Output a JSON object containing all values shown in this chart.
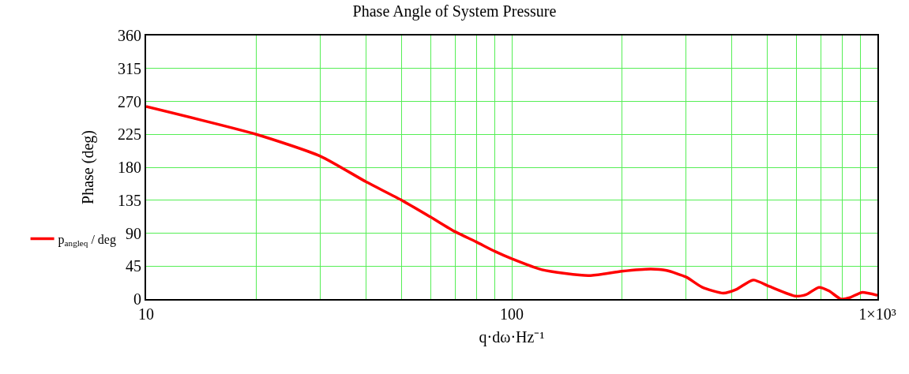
{
  "chart_data": {
    "type": "line",
    "title": "Phase Angle of System Pressure",
    "xlabel": "q·dω·Hz⁻¹",
    "ylabel": "Phase (deg)",
    "log": "x",
    "x": [
      10,
      20,
      30,
      40,
      50,
      60,
      70,
      80,
      90,
      100,
      121,
      162,
      200,
      240,
      265,
      300,
      332,
      379,
      411,
      457,
      508,
      597,
      638,
      692,
      738,
      794,
      841,
      906,
      1000
    ],
    "series": [
      {
        "name": "p$_{angle}$$_{q}$ / deg",
        "color": "#ff0000",
        "values": [
          263,
          225,
          195,
          160,
          135,
          112,
          92,
          78,
          65,
          55,
          40,
          32,
          38,
          41,
          39,
          30,
          16,
          8,
          13,
          26,
          17,
          4,
          6,
          16,
          11,
          0,
          2,
          9,
          5
        ]
      }
    ],
    "xlim": [
      10,
      1000
    ],
    "ylim": [
      0,
      360
    ],
    "xticks": [
      10,
      {
        "value": 20,
        "label": null
      },
      {
        "value": 30,
        "label": null
      },
      {
        "value": 40,
        "label": null
      },
      {
        "value": 50,
        "label": null
      },
      {
        "value": 60,
        "label": null
      },
      {
        "value": 70,
        "label": null
      },
      {
        "value": 80,
        "label": null
      },
      {
        "value": 90,
        "label": null
      },
      100,
      {
        "value": 200,
        "label": null
      },
      {
        "value": 300,
        "label": null
      },
      {
        "value": 400,
        "label": null
      },
      {
        "value": 500,
        "label": null
      },
      {
        "value": 600,
        "label": null
      },
      {
        "value": 700,
        "label": null
      },
      {
        "value": 800,
        "label": null
      },
      {
        "value": 900,
        "label": null
      },
      {
        "value": 1000,
        "label": "1×10³"
      }
    ],
    "yticks": [
      0,
      45,
      90,
      135,
      180,
      225,
      270,
      315,
      360
    ],
    "grid": true,
    "legend": "left",
    "marker": "none",
    "line_style": "solid"
  }
}
